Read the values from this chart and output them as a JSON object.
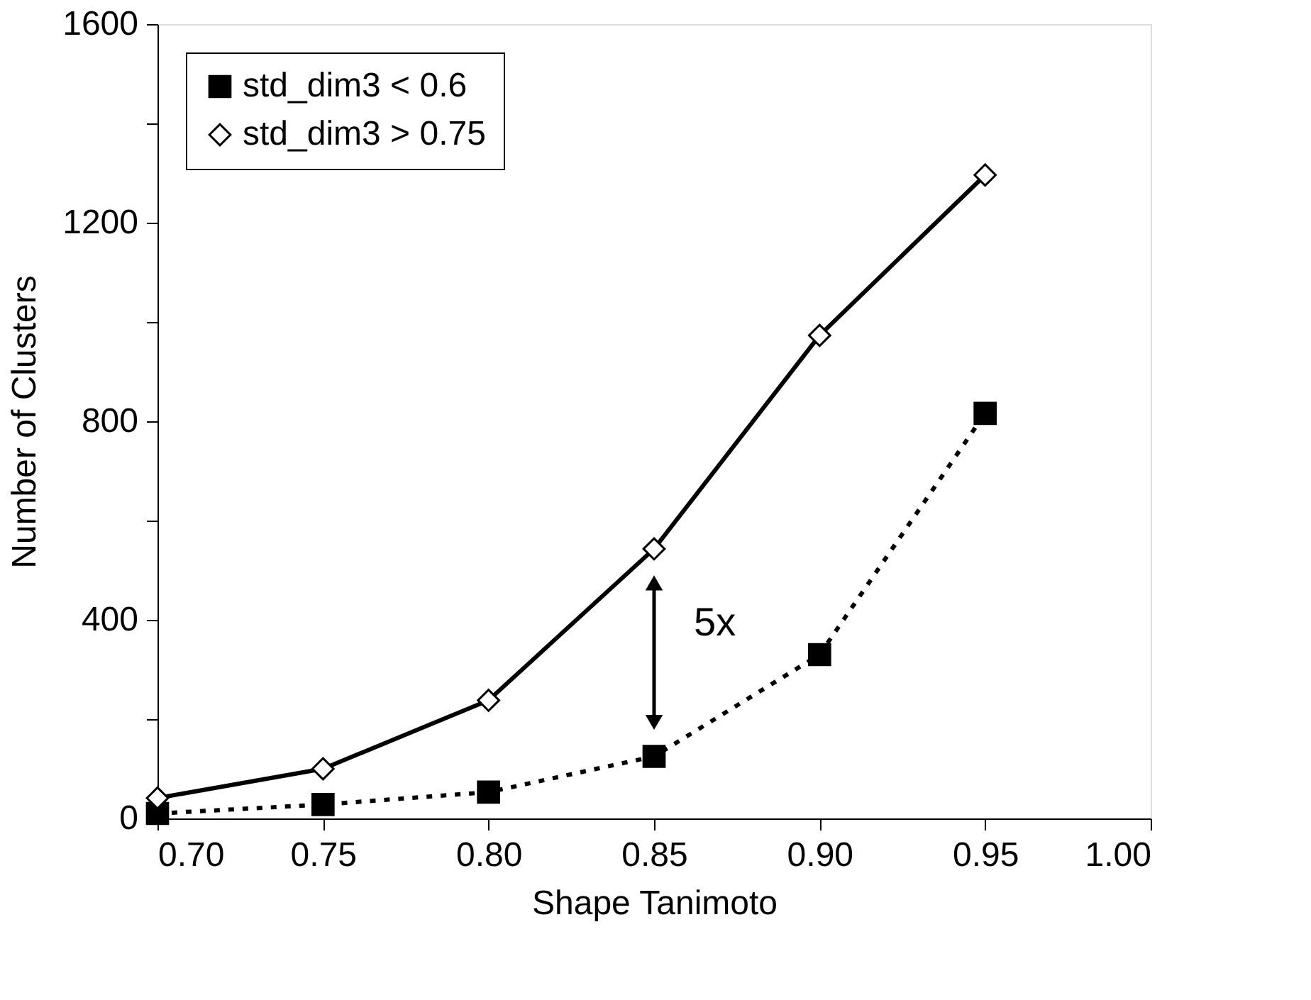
{
  "chart_data": {
    "type": "line",
    "xlabel": "Shape Tanimoto",
    "ylabel": "Number of Clusters",
    "x": [
      0.7,
      0.75,
      0.8,
      0.85,
      0.9,
      0.95
    ],
    "series": [
      {
        "name": "std_dim3 < 0.6",
        "color": "#000000",
        "marker": "square",
        "line_style": "dotted",
        "values": [
          10,
          28,
          53,
          125,
          330,
          816
        ]
      },
      {
        "name": "std_dim3 > 0.75",
        "color": "#000000",
        "marker": "diamond",
        "line_style": "solid",
        "values": [
          41,
          100,
          238,
          543,
          973,
          1296
        ]
      }
    ],
    "xlim": [
      0.7,
      1.0
    ],
    "xticks": [
      {
        "value": 0.7,
        "label": "0.70"
      },
      {
        "value": 0.75,
        "label": "0.75"
      },
      {
        "value": 0.8,
        "label": "0.80"
      },
      {
        "value": 0.85,
        "label": "0.85"
      },
      {
        "value": 0.9,
        "label": "0.90"
      },
      {
        "value": 0.95,
        "label": "0.95"
      },
      {
        "value": 1.0,
        "label": "1.00"
      }
    ],
    "ylim": [
      0,
      1600
    ],
    "yticks": [
      0,
      {
        "value": 200,
        "label": null
      },
      400,
      {
        "value": 600,
        "label": null
      },
      800,
      {
        "value": 1000,
        "label": null
      },
      1200,
      {
        "value": 1400,
        "label": null
      },
      1600
    ],
    "annotations": [
      "5x"
    ],
    "legend": "top left",
    "grid": false
  }
}
